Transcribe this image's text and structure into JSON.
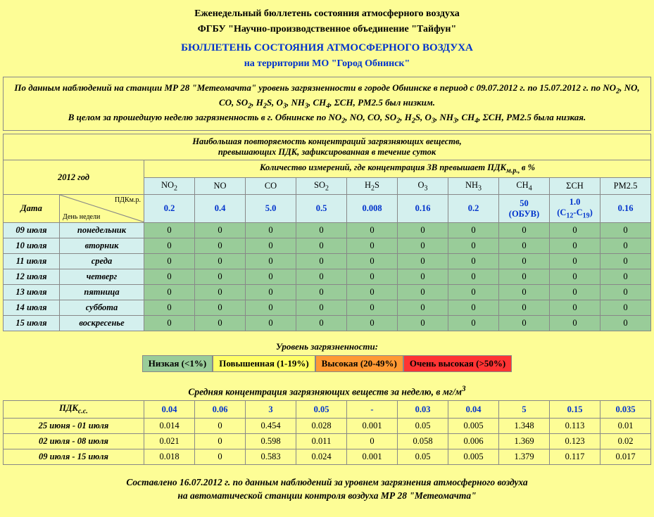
{
  "header": {
    "line1": "Еженедельный бюллетень состояния атмосферного воздуха",
    "line2": "ФГБУ \"Научно-производственное объединение \"Тайфун\"",
    "line3": "БЮЛЛЕТЕНЬ СОСТОЯНИЯ АТМОСФЕРНОГО ВОЗДУХА",
    "line4": "на территории МО \"Город Обнинск\""
  },
  "intro": {
    "html": "По данным наблюдений на станции МР 28 \"Метеомачта\" уровень загрязненности в городе Обнинске в период с 09.07.2012 г. по 15.07.2012 г. по NO<sub>2</sub>, NO, CO, SO<sub>2</sub>, H<sub>2</sub>S, O<sub>3</sub>, NH<sub>3</sub>, CH<sub>4</sub>, ΣCH, PM2.5 был низким.<br>В целом за прошедшую неделю загрязненность в г. Обнинске по NO<sub>2</sub>, NO, CO, SO<sub>2</sub>, H<sub>2</sub>S, O<sub>3</sub>, NH<sub>3</sub>, CH<sub>4</sub>, ΣCH, PM2.5 была низкая."
  },
  "table1": {
    "title_html": "Наибольшая повторяемость концентраций загрязняющих веществ,<br>превышающих ПДК, зафиксированная в течение суток",
    "year": "2012 год",
    "top_header_html": "Количество измерений, где концентрация ЗВ превышает ПДК<sub>м.р., </sub><i>в %</i>",
    "date_label": "Дата",
    "pdk_top": "ПДКм.р.",
    "pdk_bot": "День недели",
    "columns_html": [
      "NO<sub>2</sub>",
      "NO",
      "CO",
      "SO<sub>2</sub>",
      "H<sub>2</sub>S",
      "O<sub>3</sub>",
      "NH<sub>3</sub>",
      "CH<sub>4</sub>",
      "ΣCH",
      "PM2.5"
    ],
    "pdk_vals_html": [
      "0.2",
      "0.4",
      "5.0",
      "0.5",
      "0.008",
      "0.16",
      "0.2",
      "50<br>(ОБУВ)",
      "1.0<br>(C<sub>12</sub>-C<sub>19</sub>)",
      "0.16"
    ],
    "rows": [
      {
        "date": "09 июля",
        "day": "понедельник",
        "v": [
          "0",
          "0",
          "0",
          "0",
          "0",
          "0",
          "0",
          "0",
          "0",
          "0"
        ]
      },
      {
        "date": "10 июля",
        "day": "вторник",
        "v": [
          "0",
          "0",
          "0",
          "0",
          "0",
          "0",
          "0",
          "0",
          "0",
          "0"
        ]
      },
      {
        "date": "11 июля",
        "day": "среда",
        "v": [
          "0",
          "0",
          "0",
          "0",
          "0",
          "0",
          "0",
          "0",
          "0",
          "0"
        ]
      },
      {
        "date": "12 июля",
        "day": "четверг",
        "v": [
          "0",
          "0",
          "0",
          "0",
          "0",
          "0",
          "0",
          "0",
          "0",
          "0"
        ]
      },
      {
        "date": "13 июля",
        "day": "пятница",
        "v": [
          "0",
          "0",
          "0",
          "0",
          "0",
          "0",
          "0",
          "0",
          "0",
          "0"
        ]
      },
      {
        "date": "14 июля",
        "day": "суббота",
        "v": [
          "0",
          "0",
          "0",
          "0",
          "0",
          "0",
          "0",
          "0",
          "0",
          "0"
        ]
      },
      {
        "date": "15 июля",
        "day": "воскресенье",
        "v": [
          "0",
          "0",
          "0",
          "0",
          "0",
          "0",
          "0",
          "0",
          "0",
          "0"
        ]
      }
    ],
    "col_widths": [
      "80px",
      "120px",
      "72px",
      "72px",
      "72px",
      "72px",
      "72px",
      "72px",
      "72px",
      "72px",
      "72px",
      "72px"
    ],
    "colors": {
      "header_bg": "#fdfd96",
      "pale_blue": "#d4f0ee",
      "green": "#99cc99"
    }
  },
  "legend": {
    "title": "Уровень загрязненности:",
    "items": [
      {
        "text": "Низкая (<1%)",
        "bg": "#99cc99"
      },
      {
        "text": "Повышенная (1-19%)",
        "bg": "#ffff66"
      },
      {
        "text": "Высокая (20-49%)",
        "bg": "#ff9933"
      },
      {
        "text": "Очень высокая (>50%)",
        "bg": "#ff3333"
      }
    ]
  },
  "table2": {
    "title_html": "Средняя концентрация загрязняющих веществ за неделю, в мг/м<sup>3</sup>",
    "row_label": "ПДК<sub>с.с.</sub>",
    "pdk_vals": [
      "0.04",
      "0.06",
      "3",
      "0.05",
      "-",
      "0.03",
      "0.04",
      "5",
      "0.15",
      "0.035"
    ],
    "rows": [
      {
        "label": "25 июня - 01 июля",
        "v": [
          "0.014",
          "0",
          "0.454",
          "0.028",
          "0.001",
          "0.05",
          "0.005",
          "1.348",
          "0.113",
          "0.01"
        ]
      },
      {
        "label": "02 июля - 08 июля",
        "v": [
          "0.021",
          "0",
          "0.598",
          "0.011",
          "0",
          "0.058",
          "0.006",
          "1.369",
          "0.123",
          "0.02"
        ]
      },
      {
        "label": "09 июля - 15 июля",
        "v": [
          "0.018",
          "0",
          "0.583",
          "0.024",
          "0.001",
          "0.05",
          "0.005",
          "1.379",
          "0.117",
          "0.017"
        ]
      }
    ],
    "col_widths": [
      "200px",
      "72px",
      "72px",
      "72px",
      "72px",
      "72px",
      "72px",
      "72px",
      "72px",
      "72px",
      "72px"
    ]
  },
  "footer": {
    "l1": "Составлено 16.07.2012 г. по данным наблюдений за уровнем загрязнения атмосферного воздуха",
    "l2": "на автоматической станции контроля воздуха МР 28 \"Метеомачта\""
  }
}
